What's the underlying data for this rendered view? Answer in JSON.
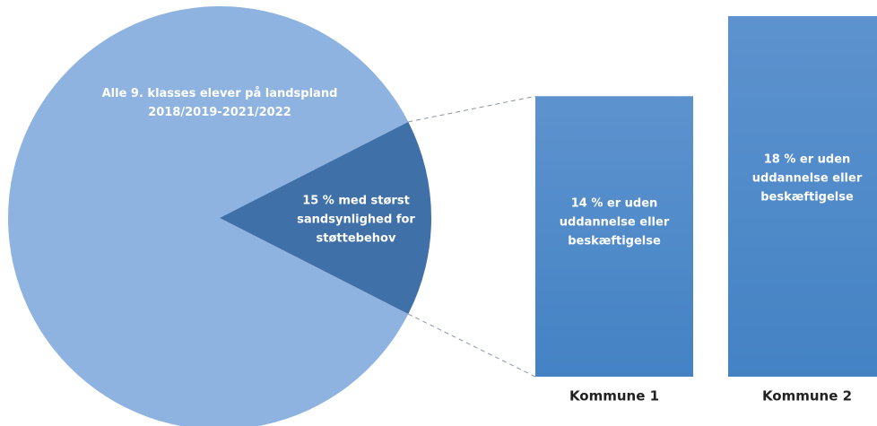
{
  "pie": {
    "type": "pie",
    "categories": [
      "Alle 9. klasses elever på landspland 2018/2019-2021/2022",
      "15 % med størst sandsynlighed for støttebehov"
    ],
    "label_lines": [
      [
        "Alle 9. klasses elever på landspland",
        "2018/2019-2021/2022"
      ],
      [
        "15 % med størst",
        "sandsynlighed for",
        "støttebehov"
      ]
    ],
    "values": [
      85,
      15
    ],
    "colors": [
      "#8fb3e0",
      "#3f70a8"
    ]
  },
  "chart_data": {
    "type": "bar",
    "categories": [
      "Kommune 1",
      "Kommune 2"
    ],
    "values": [
      14,
      18
    ],
    "label_lines": [
      [
        "14 % er uden",
        "uddannelse eller",
        "beskæftigelse"
      ],
      [
        "18 % er uden",
        "uddannelse eller",
        "beskæftigelse"
      ]
    ],
    "color": "#4a86c8",
    "ylim": [
      0,
      18
    ]
  }
}
